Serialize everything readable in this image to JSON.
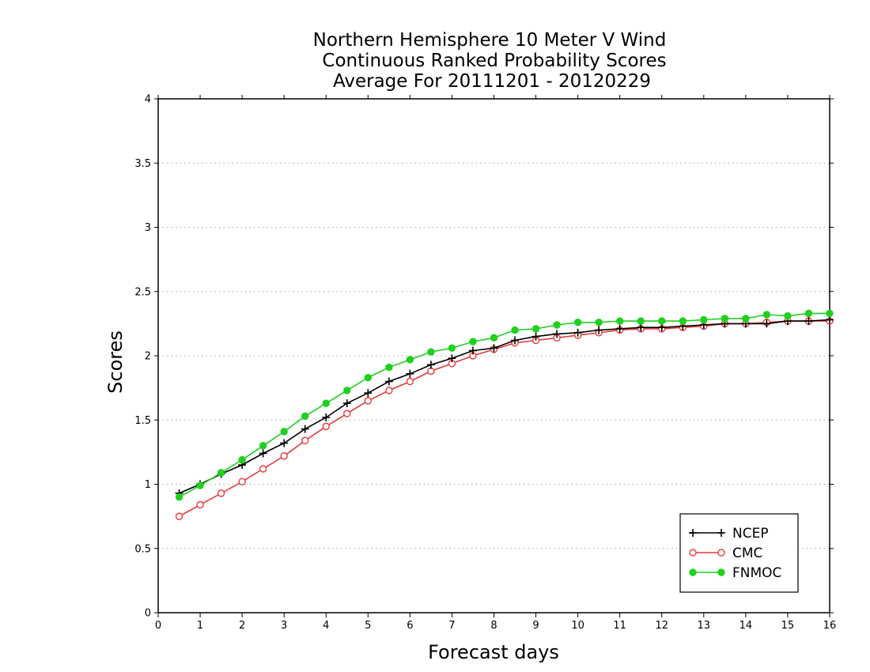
{
  "chart_data": {
    "type": "line",
    "title": [
      "Northern Hemisphere 10 Meter V Wind",
      "Continuous Ranked Probability Scores",
      "Average For 20111201 - 20120229"
    ],
    "xlabel": "Forecast days",
    "ylabel": "Scores",
    "xlim": [
      0,
      16
    ],
    "ylim": [
      0,
      4
    ],
    "xticks": [
      0,
      1,
      2,
      3,
      4,
      5,
      6,
      7,
      8,
      9,
      10,
      11,
      12,
      13,
      14,
      15,
      16
    ],
    "yticks": [
      0,
      0.5,
      1,
      1.5,
      2,
      2.5,
      3,
      3.5,
      4
    ],
    "grid": "horizontal dotted",
    "legend_position": "bottom-right",
    "x": [
      0.5,
      1,
      1.5,
      2,
      2.5,
      3,
      3.5,
      4,
      4.5,
      5,
      5.5,
      6,
      6.5,
      7,
      7.5,
      8,
      8.5,
      9,
      9.5,
      10,
      10.5,
      11,
      11.5,
      12,
      12.5,
      13,
      13.5,
      14,
      14.5,
      15,
      15.5,
      16
    ],
    "series": [
      {
        "name": "NCEP",
        "color": "#000000",
        "marker": "plus",
        "values": [
          0.93,
          1.0,
          1.08,
          1.15,
          1.24,
          1.32,
          1.43,
          1.52,
          1.63,
          1.71,
          1.8,
          1.86,
          1.93,
          1.98,
          2.04,
          2.06,
          2.12,
          2.15,
          2.17,
          2.18,
          2.2,
          2.21,
          2.22,
          2.22,
          2.23,
          2.24,
          2.25,
          2.25,
          2.25,
          2.27,
          2.27,
          2.28
        ]
      },
      {
        "name": "CMC",
        "color": "#e83a3a",
        "marker": "open-circle",
        "values": [
          0.75,
          0.84,
          0.93,
          1.02,
          1.12,
          1.22,
          1.34,
          1.45,
          1.55,
          1.65,
          1.73,
          1.8,
          1.88,
          1.94,
          2.0,
          2.05,
          2.1,
          2.12,
          2.14,
          2.16,
          2.18,
          2.2,
          2.21,
          2.21,
          2.22,
          2.23,
          2.25,
          2.25,
          2.26,
          2.27,
          2.27,
          2.27
        ]
      },
      {
        "name": "FNMOC",
        "color": "#1fd01f",
        "marker": "filled-circle",
        "values": [
          0.9,
          0.99,
          1.09,
          1.19,
          1.3,
          1.41,
          1.53,
          1.63,
          1.73,
          1.83,
          1.91,
          1.97,
          2.03,
          2.06,
          2.11,
          2.14,
          2.2,
          2.21,
          2.24,
          2.26,
          2.26,
          2.27,
          2.27,
          2.27,
          2.27,
          2.28,
          2.29,
          2.29,
          2.32,
          2.31,
          2.33,
          2.33
        ]
      }
    ]
  }
}
